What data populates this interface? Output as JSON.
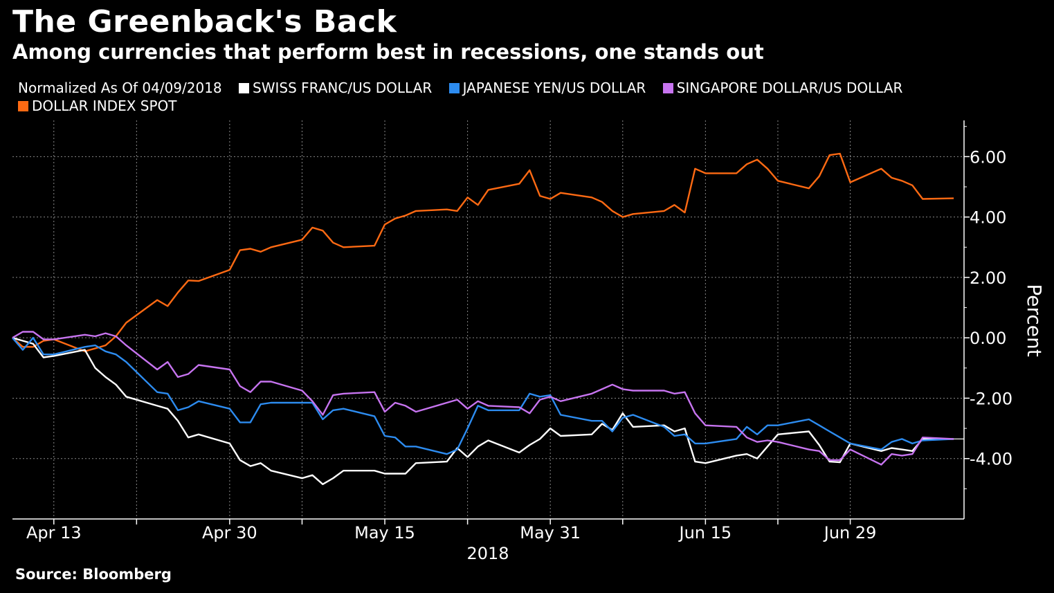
{
  "header": {
    "title": "The Greenback's Back",
    "subtitle": "Among currencies that perform best in recessions, one stands out"
  },
  "legend_caption": "Normalized As Of 04/09/2018",
  "footer": {
    "source": "Source: Bloomberg"
  },
  "chart_data": {
    "type": "line",
    "title": "The Greenback's Back",
    "subtitle": "Among currencies that perform best in recessions, one stands out",
    "xlabel": "2018",
    "ylabel": "Percent",
    "ylim": [
      -6,
      7.2
    ],
    "yticks": [
      6,
      4,
      2,
      0,
      -2,
      -4
    ],
    "ytick_labels": [
      "6.00",
      "4.00",
      "2.00",
      "0.00",
      "-2.00",
      "-4.00"
    ],
    "xlim": [
      "2018-04-09",
      "2018-07-10"
    ],
    "xticks": [
      "2018-04-13",
      "2018-04-30",
      "2018-05-15",
      "2018-05-31",
      "2018-06-15",
      "2018-06-29"
    ],
    "xtick_labels": [
      "Apr 13",
      "Apr 30",
      "May 15",
      "May 31",
      "Jun 15",
      "Jun 29"
    ],
    "grid": true,
    "legend_position": "top-left",
    "last_value_marker": -3.35,
    "series": [
      {
        "name": "DOLLAR INDEX SPOT",
        "color": "#ff6a13",
        "x": [
          "2018-04-09",
          "2018-04-10",
          "2018-04-11",
          "2018-04-12",
          "2018-04-13",
          "2018-04-16",
          "2018-04-17",
          "2018-04-18",
          "2018-04-19",
          "2018-04-20",
          "2018-04-23",
          "2018-04-24",
          "2018-04-25",
          "2018-04-26",
          "2018-04-27",
          "2018-04-30",
          "2018-05-01",
          "2018-05-02",
          "2018-05-03",
          "2018-05-04",
          "2018-05-07",
          "2018-05-08",
          "2018-05-09",
          "2018-05-10",
          "2018-05-11",
          "2018-05-14",
          "2018-05-15",
          "2018-05-16",
          "2018-05-17",
          "2018-05-18",
          "2018-05-21",
          "2018-05-22",
          "2018-05-23",
          "2018-05-24",
          "2018-05-25",
          "2018-05-28",
          "2018-05-29",
          "2018-05-30",
          "2018-05-31",
          "2018-06-01",
          "2018-06-04",
          "2018-06-05",
          "2018-06-06",
          "2018-06-07",
          "2018-06-08",
          "2018-06-11",
          "2018-06-12",
          "2018-06-13",
          "2018-06-14",
          "2018-06-15",
          "2018-06-18",
          "2018-06-19",
          "2018-06-20",
          "2018-06-21",
          "2018-06-22",
          "2018-06-25",
          "2018-06-26",
          "2018-06-27",
          "2018-06-28",
          "2018-06-29",
          "2018-07-02",
          "2018-07-03",
          "2018-07-04",
          "2018-07-05",
          "2018-07-06",
          "2018-07-09"
        ],
        "values": [
          0.0,
          -0.3,
          -0.3,
          -0.1,
          -0.05,
          -0.45,
          -0.35,
          -0.25,
          0.05,
          0.5,
          1.25,
          1.05,
          1.5,
          1.9,
          1.88,
          2.25,
          2.9,
          2.95,
          2.85,
          3.0,
          3.25,
          3.65,
          3.55,
          3.15,
          3.0,
          3.05,
          3.75,
          3.95,
          4.05,
          4.2,
          4.25,
          4.2,
          4.65,
          4.4,
          4.9,
          5.1,
          5.55,
          4.7,
          4.6,
          4.8,
          4.65,
          4.5,
          4.2,
          4.0,
          4.1,
          4.2,
          4.4,
          4.15,
          5.6,
          5.45,
          5.45,
          5.75,
          5.9,
          5.6,
          5.2,
          4.95,
          5.35,
          6.05,
          6.1,
          5.15,
          5.6,
          5.3,
          5.2,
          5.05,
          4.6,
          4.62
        ]
      },
      {
        "name": "SWISS FRANC/US DOLLAR",
        "color": "#ffffff",
        "x": [
          "2018-04-09",
          "2018-04-10",
          "2018-04-11",
          "2018-04-12",
          "2018-04-13",
          "2018-04-16",
          "2018-04-17",
          "2018-04-18",
          "2018-04-19",
          "2018-04-20",
          "2018-04-23",
          "2018-04-24",
          "2018-04-25",
          "2018-04-26",
          "2018-04-27",
          "2018-04-30",
          "2018-05-01",
          "2018-05-02",
          "2018-05-03",
          "2018-05-04",
          "2018-05-07",
          "2018-05-08",
          "2018-05-09",
          "2018-05-10",
          "2018-05-11",
          "2018-05-14",
          "2018-05-15",
          "2018-05-16",
          "2018-05-17",
          "2018-05-18",
          "2018-05-21",
          "2018-05-22",
          "2018-05-23",
          "2018-05-24",
          "2018-05-25",
          "2018-05-28",
          "2018-05-29",
          "2018-05-30",
          "2018-05-31",
          "2018-06-01",
          "2018-06-04",
          "2018-06-05",
          "2018-06-06",
          "2018-06-07",
          "2018-06-08",
          "2018-06-11",
          "2018-06-12",
          "2018-06-13",
          "2018-06-14",
          "2018-06-15",
          "2018-06-18",
          "2018-06-19",
          "2018-06-20",
          "2018-06-21",
          "2018-06-22",
          "2018-06-25",
          "2018-06-26",
          "2018-06-27",
          "2018-06-28",
          "2018-06-29",
          "2018-07-02",
          "2018-07-03",
          "2018-07-04",
          "2018-07-05",
          "2018-07-06",
          "2018-07-09"
        ],
        "values": [
          0.0,
          -0.1,
          -0.2,
          -0.65,
          -0.6,
          -0.4,
          -1.0,
          -1.3,
          -1.55,
          -1.95,
          -2.25,
          -2.35,
          -2.75,
          -3.3,
          -3.2,
          -3.5,
          -4.05,
          -4.25,
          -4.15,
          -4.4,
          -4.65,
          -4.55,
          -4.85,
          -4.65,
          -4.4,
          -4.4,
          -4.5,
          -4.5,
          -4.5,
          -4.15,
          -4.1,
          -3.65,
          -3.95,
          -3.6,
          -3.4,
          -3.8,
          -3.55,
          -3.35,
          -3.0,
          -3.25,
          -3.2,
          -2.85,
          -3.05,
          -2.5,
          -2.95,
          -2.9,
          -3.1,
          -3.0,
          -4.1,
          -4.15,
          -3.9,
          -3.85,
          -4.0,
          -3.6,
          -3.2,
          -3.1,
          -3.55,
          -4.1,
          -4.12,
          -3.5,
          -3.75,
          -3.65,
          -3.7,
          -3.75,
          -3.35,
          -3.35
        ]
      },
      {
        "name": "JAPANESE YEN/US DOLLAR",
        "color": "#2d8cf0",
        "x": [
          "2018-04-09",
          "2018-04-10",
          "2018-04-11",
          "2018-04-12",
          "2018-04-13",
          "2018-04-16",
          "2018-04-17",
          "2018-04-18",
          "2018-04-19",
          "2018-04-20",
          "2018-04-23",
          "2018-04-24",
          "2018-04-25",
          "2018-04-26",
          "2018-04-27",
          "2018-04-30",
          "2018-05-01",
          "2018-05-02",
          "2018-05-03",
          "2018-05-04",
          "2018-05-07",
          "2018-05-08",
          "2018-05-09",
          "2018-05-10",
          "2018-05-11",
          "2018-05-14",
          "2018-05-15",
          "2018-05-16",
          "2018-05-17",
          "2018-05-18",
          "2018-05-21",
          "2018-05-22",
          "2018-05-23",
          "2018-05-24",
          "2018-05-25",
          "2018-05-28",
          "2018-05-29",
          "2018-05-30",
          "2018-05-31",
          "2018-06-01",
          "2018-06-04",
          "2018-06-05",
          "2018-06-06",
          "2018-06-07",
          "2018-06-08",
          "2018-06-11",
          "2018-06-12",
          "2018-06-13",
          "2018-06-14",
          "2018-06-15",
          "2018-06-18",
          "2018-06-19",
          "2018-06-20",
          "2018-06-21",
          "2018-06-22",
          "2018-06-25",
          "2018-06-26",
          "2018-06-27",
          "2018-06-28",
          "2018-06-29",
          "2018-07-02",
          "2018-07-03",
          "2018-07-04",
          "2018-07-05",
          "2018-07-06",
          "2018-07-09"
        ],
        "values": [
          0.0,
          -0.4,
          0.0,
          -0.55,
          -0.55,
          -0.3,
          -0.25,
          -0.45,
          -0.55,
          -0.8,
          -1.8,
          -1.85,
          -2.4,
          -2.3,
          -2.1,
          -2.35,
          -2.8,
          -2.8,
          -2.2,
          -2.15,
          -2.15,
          -2.15,
          -2.7,
          -2.4,
          -2.35,
          -2.6,
          -3.25,
          -3.3,
          -3.6,
          -3.6,
          -3.85,
          -3.7,
          -3.0,
          -2.25,
          -2.4,
          -2.4,
          -1.85,
          -1.95,
          -1.9,
          -2.55,
          -2.75,
          -2.75,
          -3.1,
          -2.65,
          -2.55,
          -2.95,
          -3.25,
          -3.2,
          -3.5,
          -3.5,
          -3.35,
          -2.95,
          -3.2,
          -2.9,
          -2.9,
          -2.7,
          -2.9,
          -3.1,
          -3.3,
          -3.5,
          -3.7,
          -3.45,
          -3.35,
          -3.5,
          -3.4,
          -3.35
        ]
      },
      {
        "name": "SINGAPORE DOLLAR/US DOLLAR",
        "color": "#c774f0",
        "x": [
          "2018-04-09",
          "2018-04-10",
          "2018-04-11",
          "2018-04-12",
          "2018-04-13",
          "2018-04-16",
          "2018-04-17",
          "2018-04-18",
          "2018-04-19",
          "2018-04-20",
          "2018-04-23",
          "2018-04-24",
          "2018-04-25",
          "2018-04-26",
          "2018-04-27",
          "2018-04-30",
          "2018-05-01",
          "2018-05-02",
          "2018-05-03",
          "2018-05-04",
          "2018-05-07",
          "2018-05-08",
          "2018-05-09",
          "2018-05-10",
          "2018-05-11",
          "2018-05-14",
          "2018-05-15",
          "2018-05-16",
          "2018-05-17",
          "2018-05-18",
          "2018-05-21",
          "2018-05-22",
          "2018-05-23",
          "2018-05-24",
          "2018-05-25",
          "2018-05-28",
          "2018-05-29",
          "2018-05-30",
          "2018-05-31",
          "2018-06-01",
          "2018-06-04",
          "2018-06-05",
          "2018-06-06",
          "2018-06-07",
          "2018-06-08",
          "2018-06-11",
          "2018-06-12",
          "2018-06-13",
          "2018-06-14",
          "2018-06-15",
          "2018-06-18",
          "2018-06-19",
          "2018-06-20",
          "2018-06-21",
          "2018-06-22",
          "2018-06-25",
          "2018-06-26",
          "2018-06-27",
          "2018-06-28",
          "2018-06-29",
          "2018-07-02",
          "2018-07-03",
          "2018-07-04",
          "2018-07-05",
          "2018-07-06",
          "2018-07-09"
        ],
        "values": [
          0.0,
          0.2,
          0.2,
          -0.05,
          -0.05,
          0.1,
          0.05,
          0.15,
          0.05,
          -0.25,
          -1.05,
          -0.8,
          -1.3,
          -1.2,
          -0.9,
          -1.05,
          -1.6,
          -1.8,
          -1.45,
          -1.45,
          -1.75,
          -2.1,
          -2.55,
          -1.9,
          -1.85,
          -1.8,
          -2.45,
          -2.15,
          -2.25,
          -2.45,
          -2.15,
          -2.05,
          -2.35,
          -2.1,
          -2.25,
          -2.3,
          -2.5,
          -2.05,
          -1.95,
          -2.1,
          -1.85,
          -1.7,
          -1.55,
          -1.7,
          -1.75,
          -1.75,
          -1.85,
          -1.8,
          -2.5,
          -2.9,
          -2.95,
          -3.3,
          -3.45,
          -3.4,
          -3.45,
          -3.7,
          -3.75,
          -4.05,
          -4.05,
          -3.7,
          -4.2,
          -3.85,
          -3.9,
          -3.85,
          -3.3,
          -3.35
        ]
      }
    ]
  }
}
